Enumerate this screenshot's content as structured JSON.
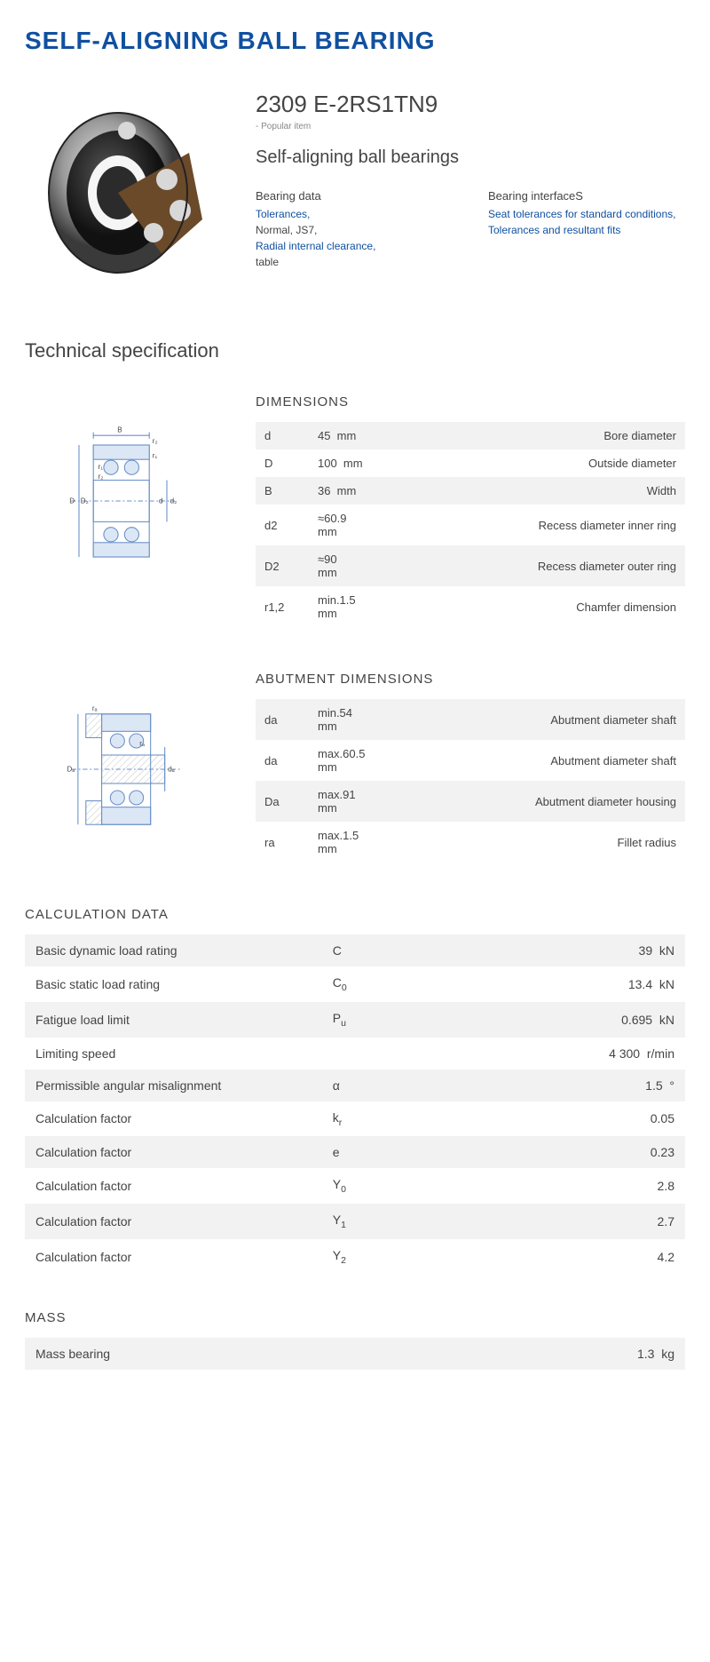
{
  "page": {
    "title": "SELF-ALIGNING BALL BEARING",
    "partNumber": "2309 E-2RS1TN9",
    "popularNote": "- Popular item",
    "subtitle": "Self-aligning ball bearings",
    "techSpecHeading": "Technical specification"
  },
  "linkCols": {
    "left": {
      "heading": "Bearing data",
      "items": [
        {
          "text": "Tolerances,",
          "type": "link"
        },
        {
          "text": "Normal, JS7,",
          "type": "plain"
        },
        {
          "text": "Radial internal clearance,",
          "type": "link"
        },
        {
          "text": "table",
          "type": "plain"
        }
      ]
    },
    "right": {
      "heading": "Bearing interfaceS",
      "items": [
        {
          "text": "Seat tolerances for standard conditions,",
          "type": "link"
        },
        {
          "text": "Tolerances and resultant fits",
          "type": "link"
        }
      ]
    }
  },
  "sections": {
    "dimensions": {
      "heading": "DIMENSIONS",
      "rows": [
        {
          "sym": "d",
          "val": "45",
          "unit": "mm",
          "desc": "Bore diameter"
        },
        {
          "sym": "D",
          "val": "100",
          "unit": "mm",
          "desc": "Outside diameter"
        },
        {
          "sym": "B",
          "val": "36",
          "unit": "mm",
          "desc": "Width"
        },
        {
          "sym": "d2",
          "val": "≈60.9",
          "unit": "mm",
          "desc": "Recess diameter inner ring"
        },
        {
          "sym": "D2",
          "val": "≈90",
          "unit": "mm",
          "desc": "Recess diameter outer ring"
        },
        {
          "sym": "r1,2",
          "val": "min.1.5",
          "unit": "mm",
          "desc": "Chamfer dimension"
        }
      ]
    },
    "abutment": {
      "heading": "ABUTMENT DIMENSIONS",
      "rows": [
        {
          "sym": "da",
          "val": "min.54",
          "unit": "mm",
          "desc": "Abutment diameter shaft"
        },
        {
          "sym": "da",
          "val": "max.60.5",
          "unit": "mm",
          "desc": "Abutment diameter shaft"
        },
        {
          "sym": "Da",
          "val": "max.91",
          "unit": "mm",
          "desc": "Abutment diameter housing"
        },
        {
          "sym": "ra",
          "val": "max.1.5",
          "unit": "mm",
          "desc": "Fillet radius"
        }
      ]
    },
    "calculation": {
      "heading": "CALCULATION DATA",
      "rows": [
        {
          "label": "Basic dynamic load rating",
          "sym": "C",
          "sub": "",
          "val": "39",
          "unit": "kN"
        },
        {
          "label": "Basic static load rating",
          "sym": "C",
          "sub": "0",
          "val": "13.4",
          "unit": "kN"
        },
        {
          "label": "Fatigue load limit",
          "sym": "P",
          "sub": "u",
          "val": "0.695",
          "unit": "kN"
        },
        {
          "label": "Limiting speed",
          "sym": "",
          "sub": "",
          "val": "4 300",
          "unit": "r/min"
        },
        {
          "label": "Permissible angular misalignment",
          "sym": "α",
          "sub": "",
          "val": "1.5",
          "unit": "°"
        },
        {
          "label": "Calculation factor",
          "sym": "k",
          "sub": "r",
          "val": "0.05",
          "unit": ""
        },
        {
          "label": "Calculation factor",
          "sym": "e",
          "sub": "",
          "val": "0.23",
          "unit": ""
        },
        {
          "label": "Calculation factor",
          "sym": "Y",
          "sub": "0",
          "val": "2.8",
          "unit": ""
        },
        {
          "label": "Calculation factor",
          "sym": "Y",
          "sub": "1",
          "val": "2.7",
          "unit": ""
        },
        {
          "label": "Calculation factor",
          "sym": "Y",
          "sub": "2",
          "val": "4.2",
          "unit": ""
        }
      ]
    },
    "mass": {
      "heading": "MASS",
      "rows": [
        {
          "label": "Mass bearing",
          "sym": "",
          "sub": "",
          "val": "1.3",
          "unit": "kg"
        }
      ]
    }
  },
  "style": {
    "brandColor": "#1050a0",
    "linkColor": "#1050a0",
    "textColor": "#444444",
    "rowOdd": "#f2f2f2",
    "rowEven": "#ffffff",
    "diagramStroke": "#6a90c9",
    "diagramHatch": "#bfbfbf"
  }
}
